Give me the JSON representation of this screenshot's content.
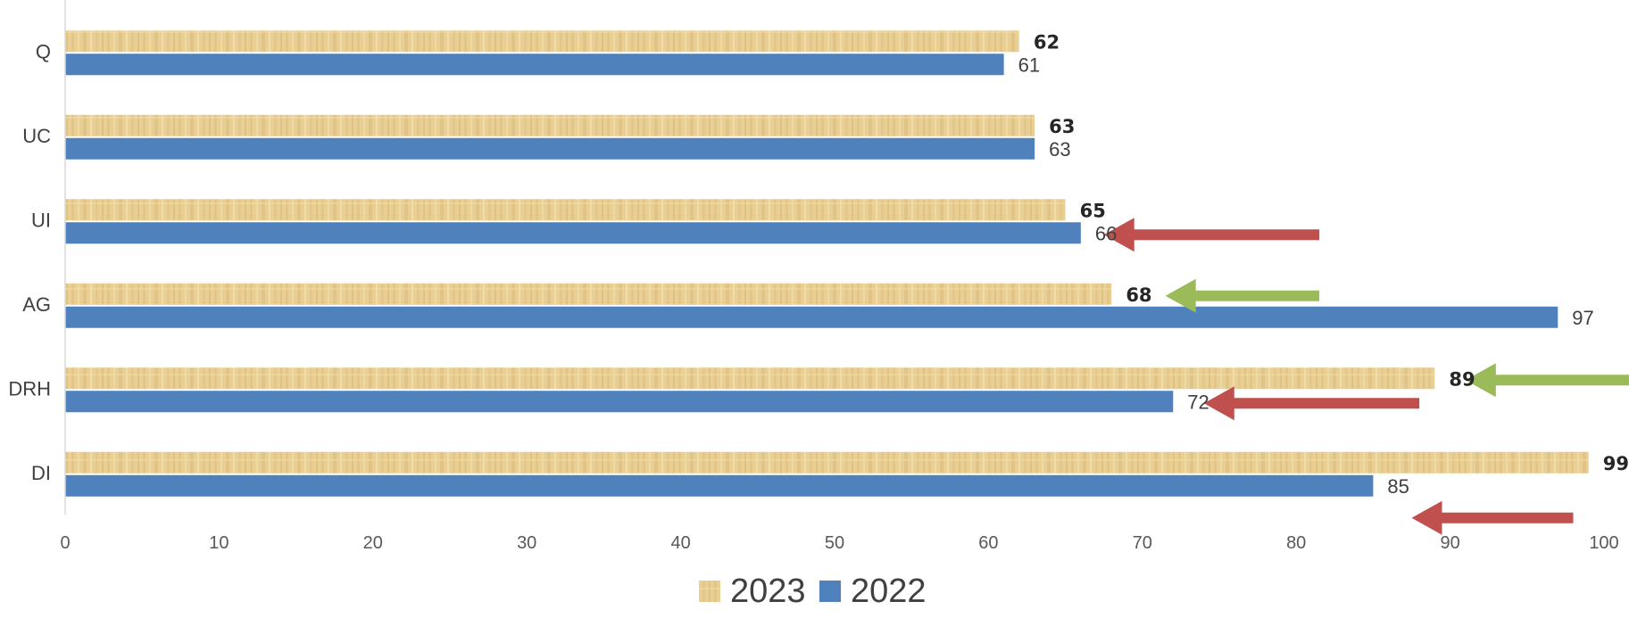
{
  "chart_data": {
    "type": "bar",
    "orientation": "horizontal",
    "categories": [
      "Q",
      "UC",
      "UI",
      "AG",
      "DRH",
      "DI"
    ],
    "series": [
      {
        "name": "2023",
        "values": [
          62,
          63,
          65,
          68,
          89,
          99
        ],
        "color": "#e9cf94",
        "pattern": "papyrus-texture",
        "label_style": "bold"
      },
      {
        "name": "2022",
        "values": [
          61,
          63,
          66,
          97,
          72,
          85
        ],
        "color": "#4f81bd",
        "label_style": "regular"
      }
    ],
    "xlim": [
      0,
      100
    ],
    "xticks": [
      0,
      10,
      20,
      30,
      40,
      50,
      60,
      70,
      80,
      90,
      100
    ],
    "grid": false,
    "legend": {
      "position": "bottom-center",
      "entries": [
        "2023",
        "2022"
      ]
    },
    "annotations": [
      {
        "type": "arrow",
        "color": "#c0504d",
        "category": "UI",
        "series": "2022",
        "from_x": 81.5,
        "to_x": 67.5,
        "direction": "left"
      },
      {
        "type": "arrow",
        "color": "#9bbb59",
        "category": "AG",
        "series": "2023",
        "from_x": 81.5,
        "to_x": 71.5,
        "direction": "left"
      },
      {
        "type": "arrow",
        "color": "#9bbb59",
        "category": "DRH",
        "series": "2023",
        "from_x": 102,
        "to_x": 91,
        "direction": "left"
      },
      {
        "type": "arrow",
        "color": "#c0504d",
        "category": "DRH",
        "series": "2022",
        "from_x": 88,
        "to_x": 74,
        "direction": "left"
      },
      {
        "type": "arrow",
        "color": "#c0504d",
        "category": "DI",
        "series": "2022",
        "from_x": 98,
        "to_x": 87.5,
        "direction": "left",
        "below_bar": true
      }
    ]
  }
}
